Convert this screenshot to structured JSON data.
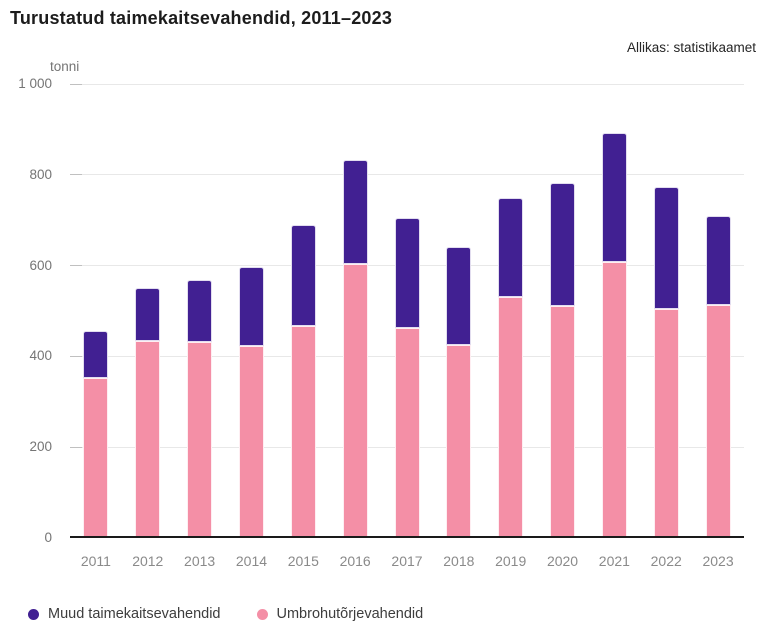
{
  "header": {
    "title": "Turustatud taimekaitsevahendid, 2011–2023",
    "source": "Allikas: statistikaamet"
  },
  "chart_data": {
    "type": "bar",
    "stacked": true,
    "title": "Turustatud taimekaitsevahendid, 2011–2023",
    "unit_label": "tonni",
    "xlabel": "",
    "ylabel": "tonni",
    "ylim": [
      0,
      1000
    ],
    "yticks": [
      0,
      200,
      400,
      600,
      800,
      1000
    ],
    "ytick_labels": [
      "0",
      "200",
      "400",
      "600",
      "800",
      "1 000"
    ],
    "grid": true,
    "legend_position": "bottom",
    "categories": [
      "2011",
      "2012",
      "2013",
      "2014",
      "2015",
      "2016",
      "2017",
      "2018",
      "2019",
      "2020",
      "2021",
      "2022",
      "2023"
    ],
    "series": [
      {
        "name": "Umbrohutõrjevahendid",
        "color": "#f48fa6",
        "stack_order": "bottom",
        "values": [
          353,
          434,
          432,
          424,
          467,
          604,
          462,
          426,
          530,
          511,
          608,
          504,
          514
        ]
      },
      {
        "name": "Muud taimekaitsevahendid",
        "color": "#412092",
        "stack_order": "top",
        "values": [
          103,
          116,
          136,
          172,
          222,
          228,
          243,
          216,
          218,
          271,
          284,
          270,
          196
        ]
      }
    ],
    "totals": [
      456,
      550,
      568,
      596,
      689,
      832,
      705,
      642,
      748,
      782,
      892,
      774,
      710
    ],
    "legend_order": [
      "Muud taimekaitsevahendid",
      "Umbrohutõrjevahendid"
    ]
  }
}
